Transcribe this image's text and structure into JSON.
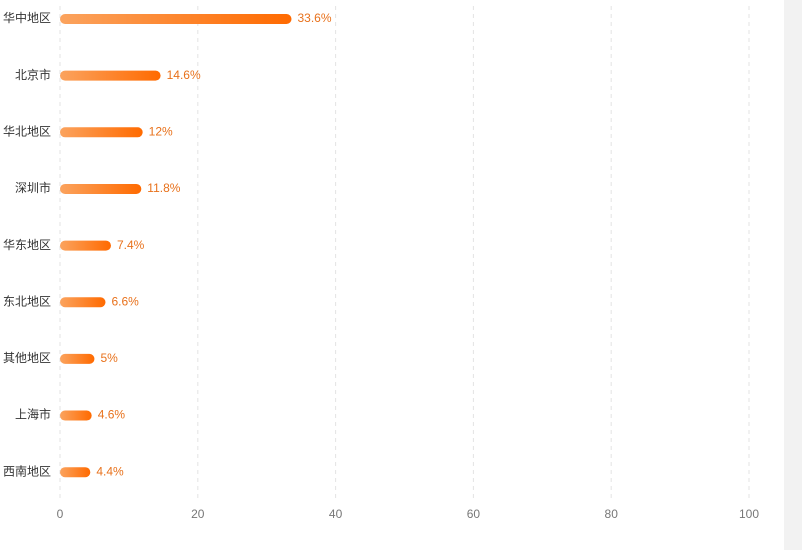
{
  "chart_data": {
    "type": "bar",
    "orientation": "horizontal",
    "categories": [
      "华中地区",
      "北京市",
      "华北地区",
      "深圳市",
      "华东地区",
      "东北地区",
      "其他地区",
      "上海市",
      "西南地区"
    ],
    "values": [
      33.6,
      14.6,
      12,
      11.8,
      7.4,
      6.6,
      5,
      4.6,
      4.4
    ],
    "value_labels": [
      "33.6%",
      "14.6%",
      "12%",
      "11.8%",
      "7.4%",
      "6.6%",
      "5%",
      "4.6%",
      "4.4%"
    ],
    "colors": [
      "#fba35e",
      "#ff6a00"
    ],
    "xlim": [
      0,
      100
    ],
    "xticks": [
      0,
      20,
      40,
      60,
      80,
      100
    ],
    "grid": true
  }
}
